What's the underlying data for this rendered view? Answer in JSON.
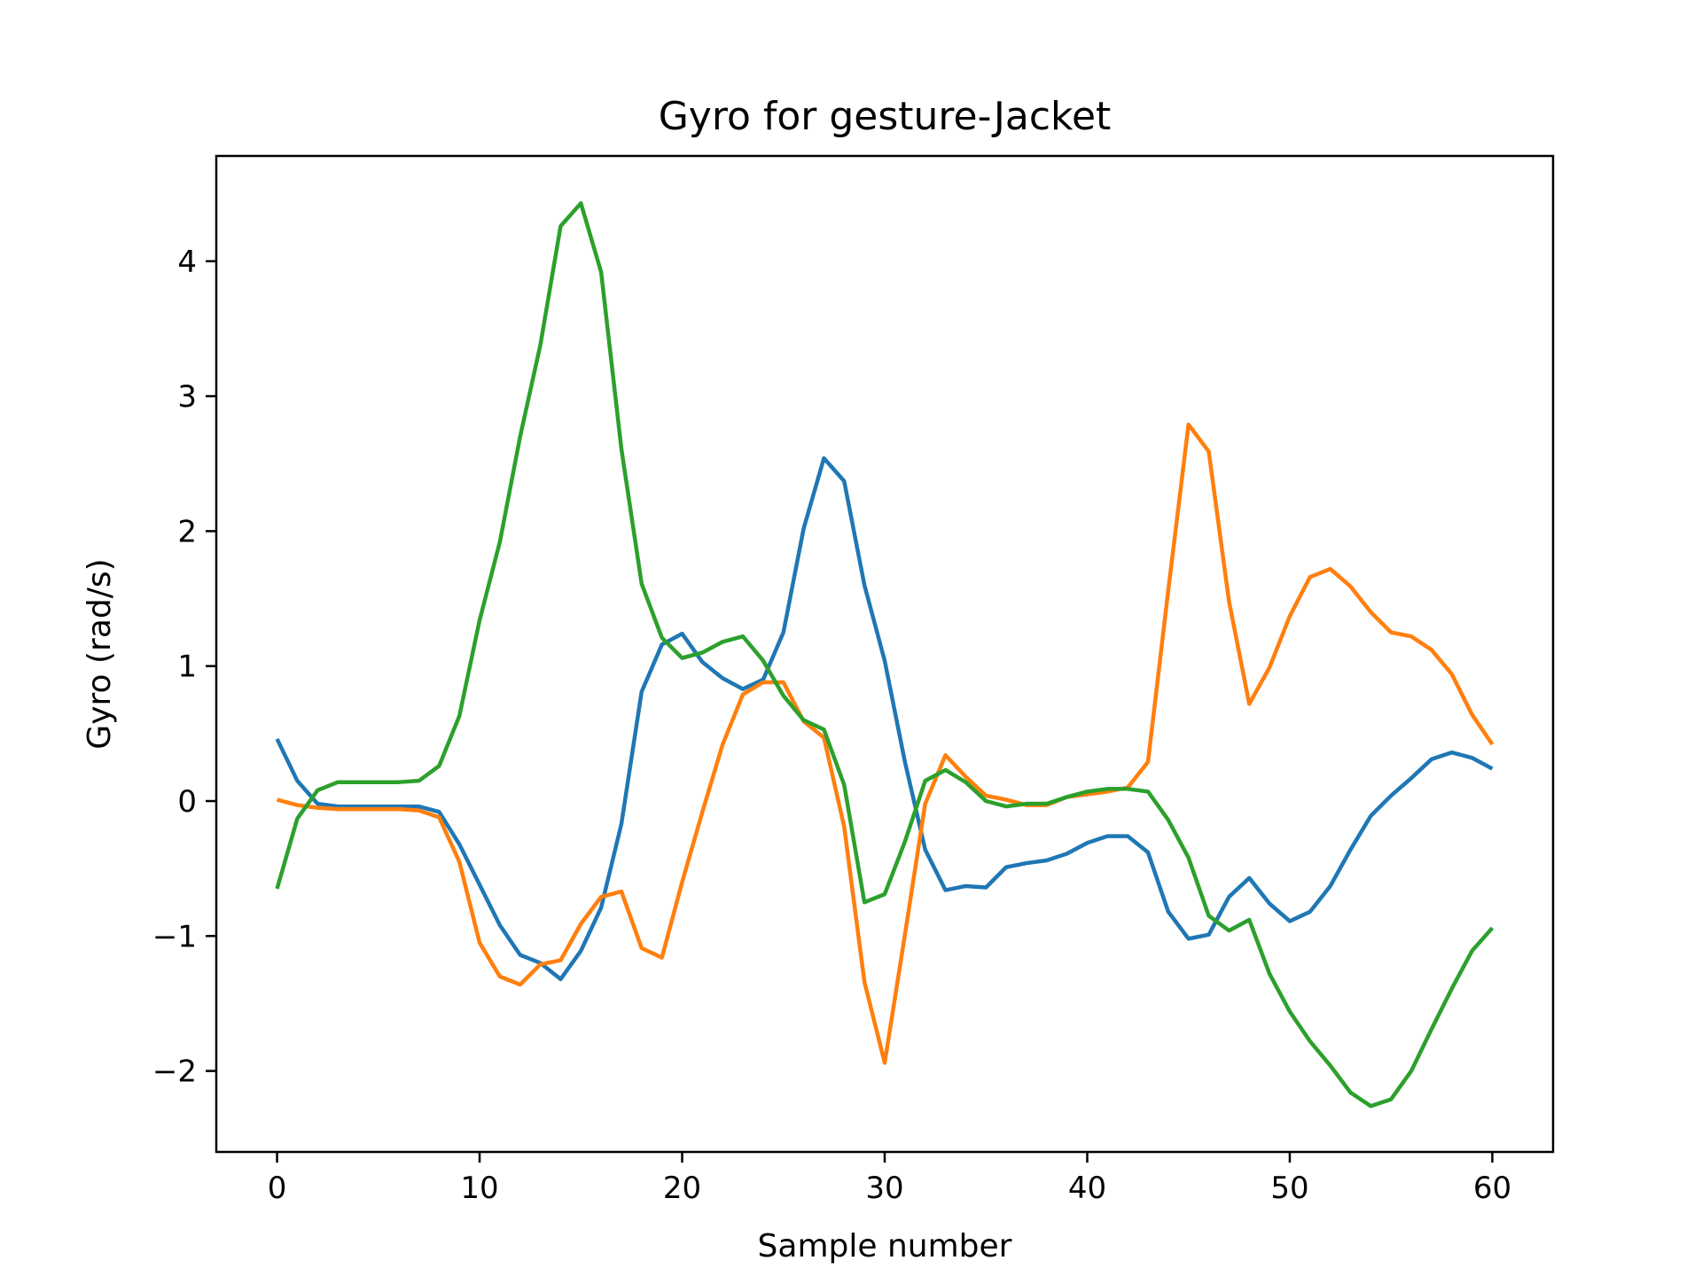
{
  "chart_data": {
    "type": "line",
    "title": "Gyro for gesture-Jacket",
    "xlabel": "Sample number",
    "ylabel": "Gyro  (rad/s)",
    "xlim": [
      -3,
      63
    ],
    "ylim": [
      -2.6,
      4.78
    ],
    "xticks": [
      0,
      10,
      20,
      30,
      40,
      50,
      60
    ],
    "xtick_labels": [
      "0",
      "10",
      "20",
      "30",
      "40",
      "50",
      "60"
    ],
    "yticks": [
      -2,
      -1,
      0,
      1,
      2,
      3,
      4
    ],
    "ytick_labels": [
      "−2",
      "−1",
      "0",
      "1",
      "2",
      "3",
      "4"
    ],
    "grid": false,
    "legend": "none",
    "series": [
      {
        "color": "#1f77b4",
        "x": [
          0,
          1,
          2,
          3,
          4,
          5,
          6,
          7,
          8,
          9,
          10,
          11,
          12,
          13,
          14,
          15,
          16,
          17,
          18,
          19,
          20,
          21,
          22,
          23,
          24,
          25,
          26,
          27,
          28,
          29,
          30,
          31,
          32,
          33,
          34,
          35,
          36,
          37,
          38,
          39,
          40,
          41,
          42,
          43,
          44,
          45,
          46,
          47,
          48,
          49,
          50,
          51,
          52,
          53,
          54,
          55,
          56,
          57,
          58,
          59,
          60
        ],
        "values": [
          0.46,
          0.15,
          -0.02,
          -0.04,
          -0.04,
          -0.04,
          -0.04,
          -0.04,
          -0.08,
          -0.32,
          -0.62,
          -0.92,
          -1.14,
          -1.2,
          -1.32,
          -1.11,
          -0.79,
          -0.17,
          0.81,
          1.16,
          1.24,
          1.03,
          0.91,
          0.83,
          0.9,
          1.25,
          2.02,
          2.54,
          2.37,
          1.6,
          1.04,
          0.29,
          -0.36,
          -0.66,
          -0.63,
          -0.64,
          -0.49,
          -0.46,
          -0.44,
          -0.39,
          -0.31,
          -0.26,
          -0.26,
          -0.38,
          -0.82,
          -1.02,
          -0.99,
          -0.71,
          -0.57,
          -0.76,
          -0.89,
          -0.82,
          -0.63,
          -0.36,
          -0.11,
          0.04,
          0.17,
          0.31,
          0.36,
          0.32,
          0.24
        ]
      },
      {
        "color": "#ff7f0e",
        "x": [
          0,
          1,
          2,
          3,
          4,
          5,
          6,
          7,
          8,
          9,
          10,
          11,
          12,
          13,
          14,
          15,
          16,
          17,
          18,
          19,
          20,
          21,
          22,
          23,
          24,
          25,
          26,
          27,
          28,
          29,
          30,
          31,
          32,
          33,
          34,
          35,
          36,
          37,
          38,
          39,
          40,
          41,
          42,
          43,
          44,
          45,
          46,
          47,
          48,
          49,
          50,
          51,
          52,
          53,
          54,
          55,
          56,
          57,
          58,
          59,
          60
        ],
        "values": [
          0.01,
          -0.03,
          -0.05,
          -0.06,
          -0.06,
          -0.06,
          -0.06,
          -0.07,
          -0.12,
          -0.45,
          -1.05,
          -1.3,
          -1.36,
          -1.21,
          -1.18,
          -0.91,
          -0.71,
          -0.67,
          -1.09,
          -1.16,
          -0.6,
          -0.08,
          0.42,
          0.79,
          0.88,
          0.88,
          0.59,
          0.47,
          -0.19,
          -1.34,
          -1.94,
          -0.99,
          -0.02,
          0.34,
          0.18,
          0.04,
          0.01,
          -0.03,
          -0.03,
          0.03,
          0.05,
          0.07,
          0.1,
          0.29,
          1.56,
          2.79,
          2.59,
          1.48,
          0.72,
          0.99,
          1.37,
          1.66,
          1.72,
          1.59,
          1.4,
          1.25,
          1.22,
          1.12,
          0.94,
          0.64,
          0.42
        ]
      },
      {
        "color": "#2ca02c",
        "x": [
          0,
          1,
          2,
          3,
          4,
          5,
          6,
          7,
          8,
          9,
          10,
          11,
          12,
          13,
          14,
          15,
          16,
          17,
          18,
          19,
          20,
          21,
          22,
          23,
          24,
          25,
          26,
          27,
          28,
          29,
          30,
          31,
          32,
          33,
          34,
          35,
          36,
          37,
          38,
          39,
          40,
          41,
          42,
          43,
          44,
          45,
          46,
          47,
          48,
          49,
          50,
          51,
          52,
          53,
          54,
          55,
          56,
          57,
          58,
          59,
          60
        ],
        "values": [
          -0.65,
          -0.13,
          0.08,
          0.14,
          0.14,
          0.14,
          0.14,
          0.15,
          0.26,
          0.63,
          1.34,
          1.92,
          2.7,
          3.38,
          4.26,
          4.43,
          3.92,
          2.61,
          1.61,
          1.21,
          1.06,
          1.1,
          1.18,
          1.22,
          1.04,
          0.78,
          0.6,
          0.53,
          0.12,
          -0.75,
          -0.69,
          -0.3,
          0.15,
          0.23,
          0.14,
          0.0,
          -0.04,
          -0.02,
          -0.02,
          0.03,
          0.07,
          0.09,
          0.09,
          0.07,
          -0.14,
          -0.42,
          -0.85,
          -0.96,
          -0.88,
          -1.28,
          -1.56,
          -1.78,
          -1.96,
          -2.16,
          -2.26,
          -2.21,
          -2.0,
          -1.69,
          -1.39,
          -1.11,
          -0.94
        ]
      }
    ]
  }
}
